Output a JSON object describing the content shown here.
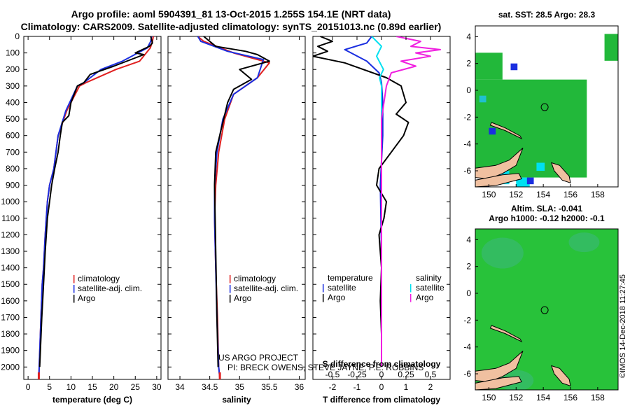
{
  "header": {
    "title_line1": "Argo profile: aoml 5904391_81 13-Oct-2015 1.255S 154.1E (NRT data)",
    "title_line2": "Climatology: CARS2009. Satellite-adjusted climatology: synTS_20151013.nc (0.89d earlier)"
  },
  "side": {
    "sst_title": "sat. SST: 28.5 Argo: 28.3",
    "sla_title1": "Altim. SLA: -0.041",
    "sla_title2": "Argo h1000: -0.12 h2000: -0.1",
    "watermark": "©IMOS 14-Dec-2018 11:27:45"
  },
  "credits": {
    "line1": "US ARGO PROJECT",
    "line2": "PI: BRECK OWENS, STEVE JAYNE, P.E. ROBBINS"
  },
  "legend_glyph": "|",
  "colors": {
    "climatology": "#e02020",
    "satellite": "#1a2ee0",
    "argo": "#000000",
    "sal_sat": "#00e0f0",
    "sal_argo": "#f020e0"
  },
  "chart_data": [
    {
      "type": "line",
      "name": "temperature",
      "xlabel": "temperature (deg C)",
      "xlim": [
        -1,
        31
      ],
      "xticks": [
        0,
        5,
        10,
        15,
        20,
        25,
        30
      ],
      "ylim": [
        2075,
        0
      ],
      "yticks": [
        0,
        100,
        200,
        300,
        400,
        500,
        600,
        700,
        800,
        900,
        1000,
        1100,
        1200,
        1300,
        1400,
        1500,
        1600,
        1700,
        1800,
        1900,
        2000
      ],
      "legend": [
        "climatology",
        "satellite-adj. clim.",
        "Argo"
      ],
      "series": [
        {
          "name": "climatology",
          "key": "climatology",
          "x": [
            29.2,
            29.0,
            28.5,
            26.0,
            20.5,
            13.5,
            12.0,
            9.0,
            7.0,
            6.0,
            5.0,
            4.5,
            4.0,
            3.6,
            3.3,
            3.0,
            2.6,
            2.5
          ],
          "y": [
            0,
            30,
            70,
            150,
            200,
            280,
            300,
            450,
            600,
            800,
            900,
            1000,
            1200,
            1400,
            1500,
            1700,
            2000,
            2070
          ]
        },
        {
          "name": "satellite-adj. clim.",
          "key": "satellite",
          "x": [
            28.8,
            28.6,
            27.8,
            22.0,
            17.0,
            13.0,
            11.5,
            8.8,
            7.0,
            6.0,
            5.0,
            4.5,
            4.0,
            3.6,
            3.3,
            3.0,
            2.6,
            2.5
          ],
          "y": [
            0,
            30,
            70,
            150,
            200,
            280,
            300,
            450,
            600,
            800,
            900,
            1000,
            1200,
            1400,
            1500,
            1700,
            2000,
            2070
          ]
        },
        {
          "name": "Argo",
          "key": "argo",
          "x": [
            28.6,
            29.0,
            28.3,
            25.0,
            27.0,
            20.0,
            14.5,
            13.0,
            11.5,
            10.0,
            9.5,
            8.0,
            7.5,
            7.0,
            6.2,
            5.5,
            5.0,
            4.5,
            4.0,
            3.6,
            3.2,
            2.7
          ],
          "y": [
            0,
            40,
            60,
            100,
            110,
            180,
            230,
            280,
            300,
            400,
            480,
            520,
            600,
            700,
            800,
            900,
            1000,
            1100,
            1300,
            1500,
            1700,
            2000
          ]
        }
      ]
    },
    {
      "type": "line",
      "name": "salinity",
      "xlabel": "salinity",
      "xlim": [
        33.8,
        36.1
      ],
      "xticks": [
        34,
        34.5,
        35,
        35.5,
        36
      ],
      "ylim": [
        2075,
        0
      ],
      "legend": [
        "climatology",
        "satellite-adj. clim.",
        "Argo"
      ],
      "series": [
        {
          "name": "climatology",
          "key": "climatology",
          "x": [
            34.3,
            34.4,
            34.9,
            35.5,
            35.3,
            34.9,
            34.75,
            34.65,
            34.6,
            34.58,
            34.6,
            34.63,
            34.65,
            34.67
          ],
          "y": [
            0,
            30,
            100,
            160,
            250,
            350,
            500,
            700,
            900,
            1100,
            1400,
            1700,
            2000,
            2070
          ]
        },
        {
          "name": "satellite-adj. clim.",
          "key": "satellite",
          "x": [
            34.3,
            34.35,
            34.8,
            35.4,
            35.3,
            34.9,
            34.72,
            34.62,
            34.58,
            34.58,
            34.6,
            34.62,
            34.65,
            34.67
          ],
          "y": [
            0,
            30,
            90,
            140,
            250,
            350,
            500,
            700,
            900,
            1100,
            1400,
            1700,
            2000,
            2070
          ]
        },
        {
          "name": "Argo",
          "key": "argo",
          "x": [
            34.4,
            34.6,
            35.1,
            35.3,
            35.5,
            35.0,
            35.2,
            34.9,
            34.8,
            34.7,
            34.6,
            34.58,
            34.6,
            34.62,
            34.64
          ],
          "y": [
            0,
            60,
            90,
            110,
            150,
            200,
            260,
            320,
            400,
            550,
            700,
            900,
            1300,
            1700,
            2000
          ]
        }
      ]
    },
    {
      "type": "line",
      "name": "differences",
      "xlabel": "T difference from climatology",
      "xlabel_top": "S difference from climatology",
      "xlim": [
        -2.8,
        2.8
      ],
      "xticks": [
        -2,
        -1,
        0,
        1,
        2
      ],
      "xticks_top": [
        -0.5,
        -0.25,
        0,
        0.25,
        0.5
      ],
      "ylim": [
        2075,
        0
      ],
      "legend_temperature_title": "temperature",
      "legend_salinity_title": "salinity",
      "legend_temperature": [
        "satellite",
        "Argo"
      ],
      "legend_salinity": [
        "satellite",
        "Argo"
      ],
      "series": [
        {
          "name": "T satellite",
          "key": "satellite",
          "x": [
            -0.4,
            -0.6,
            -1.5,
            -0.6,
            -0.1,
            0.0,
            0.05,
            0.05,
            -0.05,
            0.0,
            0.0,
            0.0
          ],
          "y": [
            0,
            40,
            80,
            150,
            220,
            280,
            400,
            600,
            900,
            1300,
            1700,
            2000
          ]
        },
        {
          "name": "T Argo",
          "key": "argo",
          "x": [
            -2.5,
            -2.0,
            -2.6,
            -2.2,
            -2.8,
            -1.5,
            0.2,
            0.8,
            1.0,
            0.6,
            1.1,
            0.9,
            0.4,
            -0.1,
            -0.2,
            0.2,
            0.1,
            -0.1,
            0.0,
            -0.05,
            0.0,
            0.0
          ],
          "y": [
            0,
            30,
            60,
            90,
            120,
            160,
            250,
            300,
            400,
            470,
            520,
            600,
            700,
            800,
            900,
            1000,
            1100,
            1200,
            1400,
            1600,
            1800,
            2000
          ]
        },
        {
          "name": "S satellite",
          "key": "sal_sat",
          "x": [
            -0.1,
            0.0,
            -0.05,
            0.02,
            -0.02,
            0.0,
            0.0,
            0.0,
            0.0,
            0.0
          ],
          "y": [
            0,
            60,
            120,
            200,
            250,
            300,
            600,
            1000,
            1500,
            2000
          ]
        },
        {
          "name": "S Argo",
          "key": "sal_argo",
          "x": [
            0.15,
            0.4,
            0.3,
            0.6,
            0.35,
            0.5,
            0.2,
            0.35,
            0.1,
            0.05,
            0.0,
            0.0,
            0.0,
            0.0
          ],
          "y": [
            0,
            30,
            60,
            80,
            100,
            120,
            150,
            180,
            220,
            300,
            500,
            900,
            1500,
            2000
          ]
        }
      ]
    },
    {
      "type": "heatmap",
      "name": "sat. SST map",
      "xticks": [
        150,
        152,
        154,
        156,
        158
      ],
      "yticks": [
        4,
        2,
        0,
        -2,
        -4,
        -6
      ],
      "xlim": [
        149,
        159.5
      ],
      "ylim": [
        -7.2,
        4.8
      ],
      "profile_location": [
        154.1,
        -1.255
      ]
    },
    {
      "type": "heatmap",
      "name": "Altim. SLA map",
      "xticks": [
        150,
        152,
        154,
        156,
        158
      ],
      "yticks": [
        4,
        2,
        0,
        -2,
        -4,
        -6
      ],
      "xlim": [
        149,
        159.5
      ],
      "ylim": [
        -7.2,
        4.8
      ],
      "profile_location": [
        154.1,
        -1.255
      ]
    }
  ]
}
